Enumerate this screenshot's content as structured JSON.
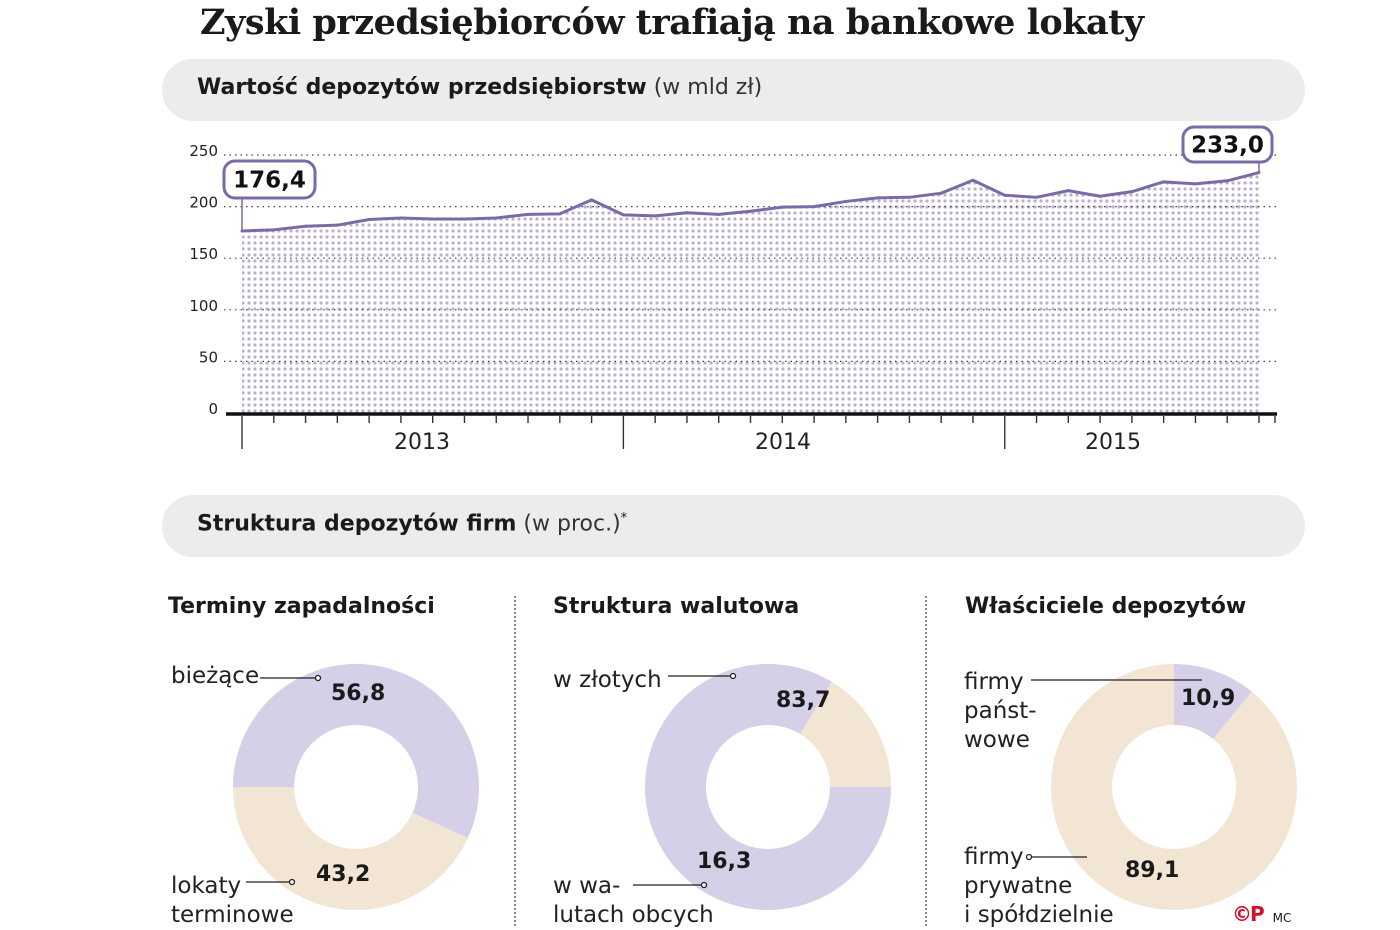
{
  "title": "Zyski przedsiębiorców  trafiają na bankowe lokaty",
  "section1": {
    "label": "Wartość depozytów przedsiębiorstw",
    "unit": "(w mld zł)"
  },
  "section2": {
    "label": "Struktura depozytów firm",
    "unit": "(w proc.)",
    "footnote_mark": "*"
  },
  "colors": {
    "line": "#7c6aa6",
    "fill_dots": "#b9afd2",
    "purple_slice": "#d5cfe7",
    "beige_slice": "#f2e5d4"
  },
  "chart_data": [
    {
      "type": "area",
      "title": "Wartość depozytów przedsiębiorstw (w mld zł)",
      "ylim": [
        0,
        250
      ],
      "yticks": [
        "0",
        "50",
        "100",
        "150",
        "200",
        "250"
      ],
      "year_labels": [
        "2013",
        "2014",
        "2015"
      ],
      "values": [
        176.4,
        177.5,
        181,
        182,
        187.5,
        189,
        188,
        188,
        189,
        192.5,
        193,
        206.5,
        192,
        191,
        194,
        192.5,
        195.5,
        199.5,
        200,
        205,
        208.5,
        209,
        213,
        225.5,
        211,
        209,
        215.5,
        210,
        214.5,
        224,
        222,
        225,
        233
      ],
      "start_label": "176,4",
      "end_label": "233,0"
    },
    {
      "type": "pie",
      "title": "Terminy zapadalności",
      "slices": [
        {
          "name": "bieżące",
          "value": 56.8,
          "label": "56,8"
        },
        {
          "name": "lokaty terminowe",
          "value": 43.2,
          "label": "43,2"
        }
      ],
      "category_label_lines": [
        [
          "bieżące"
        ],
        [
          "lokaty",
          "terminowe"
        ]
      ]
    },
    {
      "type": "pie",
      "title": "Struktura walutowa",
      "slices": [
        {
          "name": "w złotych",
          "value": 83.7,
          "label": "83,7"
        },
        {
          "name": "w walutach obcych",
          "value": 16.3,
          "label": "16,3"
        }
      ],
      "category_label_lines": [
        [
          "w złotych"
        ],
        [
          "w wa-",
          "lutach obcych"
        ]
      ]
    },
    {
      "type": "pie",
      "title": "Właściciele depozytów",
      "slices": [
        {
          "name": "firmy państwowe",
          "value": 10.9,
          "label": "10,9"
        },
        {
          "name": "firmy prywatne i spółdzielnie",
          "value": 89.1,
          "label": "89,1"
        }
      ],
      "category_label_lines": [
        [
          "firmy",
          "państ-",
          "wowe"
        ],
        [
          "firmy",
          "prywatne",
          "i spółdzielnie"
        ]
      ]
    }
  ],
  "credit": {
    "logo": "©P",
    "author": "MC"
  }
}
